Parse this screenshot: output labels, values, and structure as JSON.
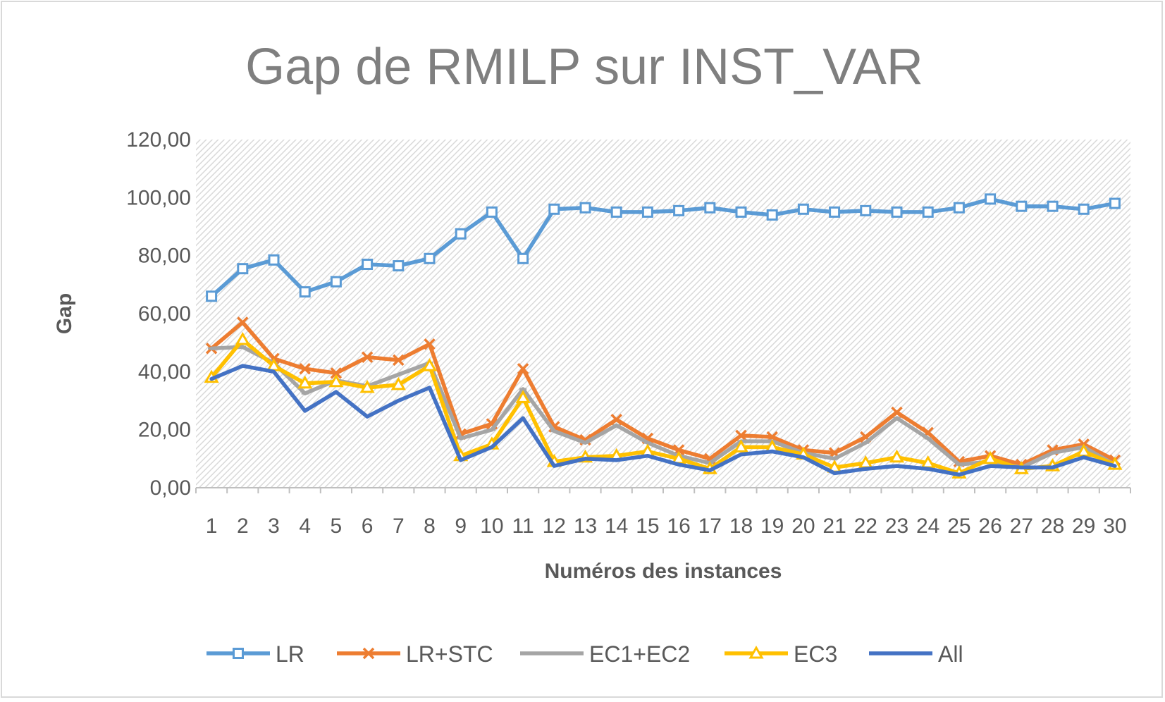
{
  "chart_data": {
    "type": "line",
    "title": "Gap de RMILP sur INST_VAR",
    "xlabel": "Numéros des instances",
    "ylabel": "Gap",
    "ylim": [
      0,
      120
    ],
    "yticks": [
      "0,00",
      "20,00",
      "40,00",
      "60,00",
      "80,00",
      "100,00",
      "120,00"
    ],
    "categories": [
      "1",
      "2",
      "3",
      "4",
      "5",
      "6",
      "7",
      "8",
      "9",
      "10",
      "11",
      "12",
      "13",
      "14",
      "15",
      "16",
      "17",
      "18",
      "19",
      "20",
      "21",
      "22",
      "23",
      "24",
      "25",
      "26",
      "27",
      "28",
      "29",
      "30"
    ],
    "legend_position": "bottom",
    "plot_background": "diagonal-hatch",
    "series": [
      {
        "name": "LR",
        "color": "#5b9bd5",
        "marker": "square",
        "values": [
          66,
          75.5,
          78.5,
          67.5,
          71,
          77,
          76.5,
          79,
          87.5,
          95,
          79,
          96,
          96.5,
          95,
          95,
          95.5,
          96.5,
          95,
          94,
          96,
          95,
          95.5,
          95,
          95,
          96.5,
          99.5,
          97,
          97,
          96,
          98
        ]
      },
      {
        "name": "LR+STC",
        "color": "#ed7d31",
        "marker": "x",
        "values": [
          48,
          57,
          44.5,
          41,
          39.5,
          45,
          44,
          49.5,
          18.5,
          22,
          41,
          21,
          16.5,
          23.5,
          17,
          13,
          10,
          18,
          17.5,
          13,
          12,
          17.5,
          26,
          19,
          9,
          11,
          8,
          13,
          15,
          9.5
        ]
      },
      {
        "name": "EC1+EC2",
        "color": "#a5a5a5",
        "marker": "dash",
        "values": [
          48,
          48.5,
          43,
          32.5,
          37,
          35,
          39,
          43,
          17,
          20,
          34,
          19.5,
          15.5,
          21.5,
          15.5,
          11,
          8.5,
          16,
          16,
          12,
          10,
          15.5,
          24,
          17,
          8,
          9,
          7,
          12,
          14,
          8
        ]
      },
      {
        "name": "EC3",
        "color": "#ffc000",
        "marker": "triangle",
        "values": [
          38,
          51,
          42,
          36,
          36.5,
          34.5,
          35.5,
          42,
          11,
          15,
          31,
          9,
          10.5,
          11,
          12.5,
          10,
          6.5,
          14,
          14,
          11.5,
          7,
          8.5,
          10.5,
          8.5,
          5,
          10,
          6.5,
          7.5,
          12.5,
          8
        ]
      },
      {
        "name": "All",
        "color": "#4472c4",
        "marker": "none",
        "values": [
          37.5,
          42,
          40,
          26.5,
          33,
          24.5,
          30,
          34.5,
          9.5,
          14,
          24,
          7.5,
          10,
          9.5,
          11,
          8,
          6,
          11.5,
          12.5,
          10.5,
          5,
          6.5,
          7.5,
          6.5,
          4.5,
          7.5,
          7,
          7,
          10.5,
          7.5
        ]
      }
    ]
  }
}
